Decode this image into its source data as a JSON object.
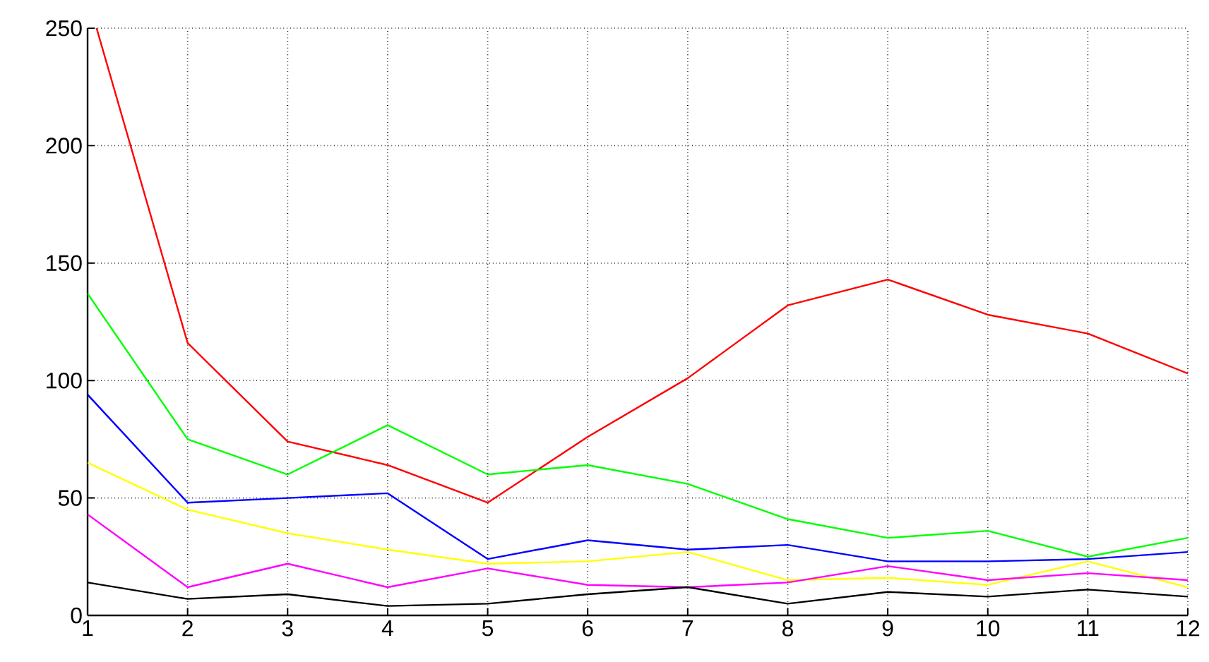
{
  "chart_data": {
    "type": "line",
    "x": [
      1,
      2,
      3,
      4,
      5,
      6,
      7,
      8,
      9,
      10,
      11,
      12
    ],
    "xlim": [
      1,
      12
    ],
    "ylim": [
      0,
      250
    ],
    "xticks": [
      1,
      2,
      3,
      4,
      5,
      6,
      7,
      8,
      9,
      10,
      11,
      12
    ],
    "yticks": [
      0,
      50,
      100,
      150,
      200,
      250
    ],
    "grid": true,
    "line_style": "solid",
    "series": [
      {
        "color": "#ff0000",
        "x": [
          1.09,
          2,
          3,
          4,
          5,
          6,
          7,
          8,
          9,
          10,
          11,
          12
        ],
        "values": [
          250,
          116,
          74,
          64,
          48,
          76,
          101,
          132,
          143,
          128,
          120,
          103
        ]
      },
      {
        "color": "#00ff00",
        "values": [
          137,
          75,
          60,
          81,
          60,
          64,
          56,
          41,
          33,
          36,
          25,
          33
        ]
      },
      {
        "color": "#0000ff",
        "values": [
          94,
          48,
          50,
          52,
          24,
          32,
          28,
          30,
          23,
          23,
          24,
          27
        ]
      },
      {
        "color": "#ffff00",
        "values": [
          65,
          45,
          35,
          28,
          22,
          23,
          27,
          15,
          16,
          13,
          23,
          12
        ]
      },
      {
        "color": "#ff00ff",
        "values": [
          43,
          12,
          22,
          12,
          20,
          13,
          12,
          14,
          21,
          15,
          18,
          15
        ]
      },
      {
        "color": "#000000",
        "values": [
          14,
          7,
          9,
          4,
          5,
          9,
          12,
          5,
          10,
          8,
          11,
          8
        ]
      }
    ]
  }
}
